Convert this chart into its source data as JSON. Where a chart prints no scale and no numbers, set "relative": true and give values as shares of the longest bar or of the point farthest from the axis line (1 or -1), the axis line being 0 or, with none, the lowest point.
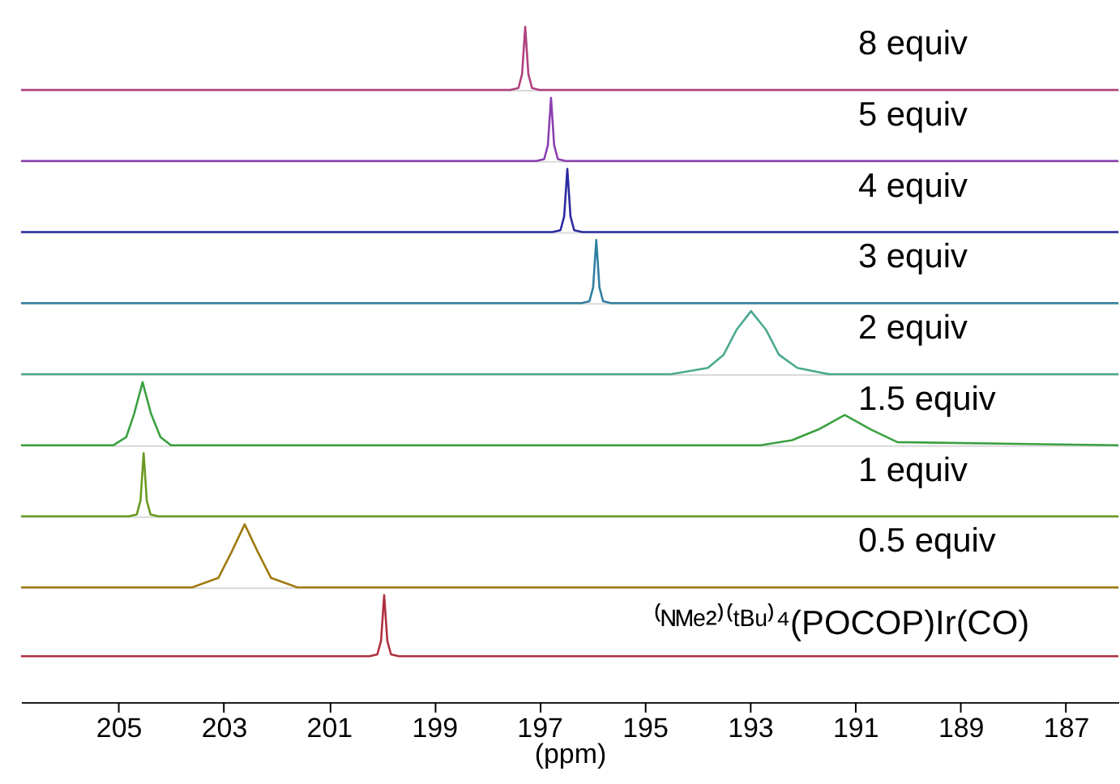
{
  "chart_data": [
    {
      "type": "line",
      "relative": true,
      "tick_labels": false,
      "xlim": [
        206.85,
        186.0
      ],
      "series": [
        {
          "name": "8 equiv",
          "color": "#b0417e",
          "x": [
            206.85,
            197.55,
            197.4,
            197.33,
            197.27,
            197.21,
            197.14,
            197.0,
            186.0
          ],
          "values": [
            0,
            0,
            0.03,
            0.25,
            1,
            0.25,
            0.03,
            0,
            0
          ]
        }
      ]
    },
    {
      "type": "line",
      "relative": true,
      "tick_labels": false,
      "xlim": [
        206.85,
        186.0
      ],
      "series": [
        {
          "name": "5 equiv",
          "color": "#8b3fb0",
          "x": [
            206.85,
            197.06,
            196.91,
            196.84,
            196.78,
            196.72,
            196.65,
            196.5,
            186.0
          ],
          "values": [
            0,
            0,
            0.03,
            0.25,
            1,
            0.25,
            0.03,
            0,
            0
          ]
        }
      ]
    },
    {
      "type": "line",
      "relative": true,
      "tick_labels": false,
      "xlim": [
        206.85,
        186.0
      ],
      "series": [
        {
          "name": "4 equiv",
          "color": "#2a2aa0",
          "x": [
            206.85,
            196.75,
            196.6,
            196.53,
            196.47,
            196.41,
            196.34,
            196.19,
            186.0
          ],
          "values": [
            0,
            0,
            0.03,
            0.25,
            1,
            0.25,
            0.03,
            0,
            0
          ]
        }
      ]
    },
    {
      "type": "line",
      "relative": true,
      "tick_labels": false,
      "xlim": [
        206.85,
        186.0
      ],
      "series": [
        {
          "name": "3 equiv",
          "color": "#2f7fa0",
          "x": [
            206.85,
            196.2,
            196.05,
            195.98,
            195.92,
            195.86,
            195.79,
            195.64,
            186.0
          ],
          "values": [
            0,
            0,
            0.03,
            0.25,
            1,
            0.25,
            0.03,
            0,
            0
          ]
        }
      ]
    },
    {
      "type": "line",
      "relative": true,
      "tick_labels": false,
      "xlim": [
        206.85,
        186.0
      ],
      "series": [
        {
          "name": "2 equiv",
          "color": "#4aaa90",
          "x": [
            206.85,
            194.5,
            193.8,
            193.5,
            193.25,
            192.98,
            192.7,
            192.45,
            192.1,
            191.5,
            186.0
          ],
          "values": [
            0,
            0,
            0.1,
            0.31,
            0.71,
            1,
            0.71,
            0.31,
            0.1,
            0,
            0
          ]
        }
      ]
    },
    {
      "type": "line",
      "relative": true,
      "tick_labels": false,
      "xlim": [
        206.85,
        186.0
      ],
      "series": [
        {
          "name": "1.5 equiv",
          "color": "#3aa040",
          "x": [
            206.85,
            205.1,
            204.85,
            204.7,
            204.54,
            204.38,
            204.2,
            204.0,
            192.8,
            192.2,
            191.7,
            191.2,
            190.7,
            190.2,
            186.0
          ],
          "values": [
            0,
            0,
            0.13,
            0.5,
            1,
            0.5,
            0.13,
            0,
            0,
            0.08,
            0.25,
            0.48,
            0.25,
            0.05,
            0
          ]
        }
      ]
    },
    {
      "type": "line",
      "relative": true,
      "tick_labels": false,
      "xlim": [
        206.85,
        186.0
      ],
      "series": [
        {
          "name": "1 equiv",
          "color": "#6a9a20",
          "x": [
            206.85,
            204.8,
            204.65,
            204.58,
            204.52,
            204.46,
            204.39,
            204.24,
            186.0
          ],
          "values": [
            0,
            0,
            0.03,
            0.25,
            1,
            0.25,
            0.03,
            0,
            0
          ]
        }
      ]
    },
    {
      "type": "line",
      "relative": true,
      "tick_labels": false,
      "xlim": [
        206.85,
        186.0
      ],
      "series": [
        {
          "name": "0.5 equiv",
          "color": "#a07a10",
          "x": [
            206.85,
            203.6,
            203.1,
            202.85,
            202.6,
            202.35,
            202.1,
            201.6,
            186.0
          ],
          "values": [
            0,
            0,
            0.15,
            0.56,
            1,
            0.56,
            0.15,
            0,
            0
          ]
        }
      ]
    },
    {
      "type": "line",
      "relative": true,
      "tick_labels": "x",
      "xlabel": "(ppm)",
      "xlim": [
        206.85,
        186.0
      ],
      "xticks": [
        205,
        203,
        201,
        199,
        197,
        195,
        193,
        191,
        189,
        187
      ],
      "series": [
        {
          "name": "⁽ᴺᴹᵉ²⁾⁽ᵗᴮᵘ⁾⁴(POCOP)Ir(CO)",
          "color": "#b03040",
          "x": [
            206.85,
            200.23,
            200.08,
            200.01,
            199.95,
            199.89,
            199.82,
            199.67,
            186.0
          ],
          "values": [
            0,
            0,
            0.03,
            0.25,
            1,
            0.25,
            0.03,
            0,
            0
          ]
        }
      ]
    }
  ]
}
